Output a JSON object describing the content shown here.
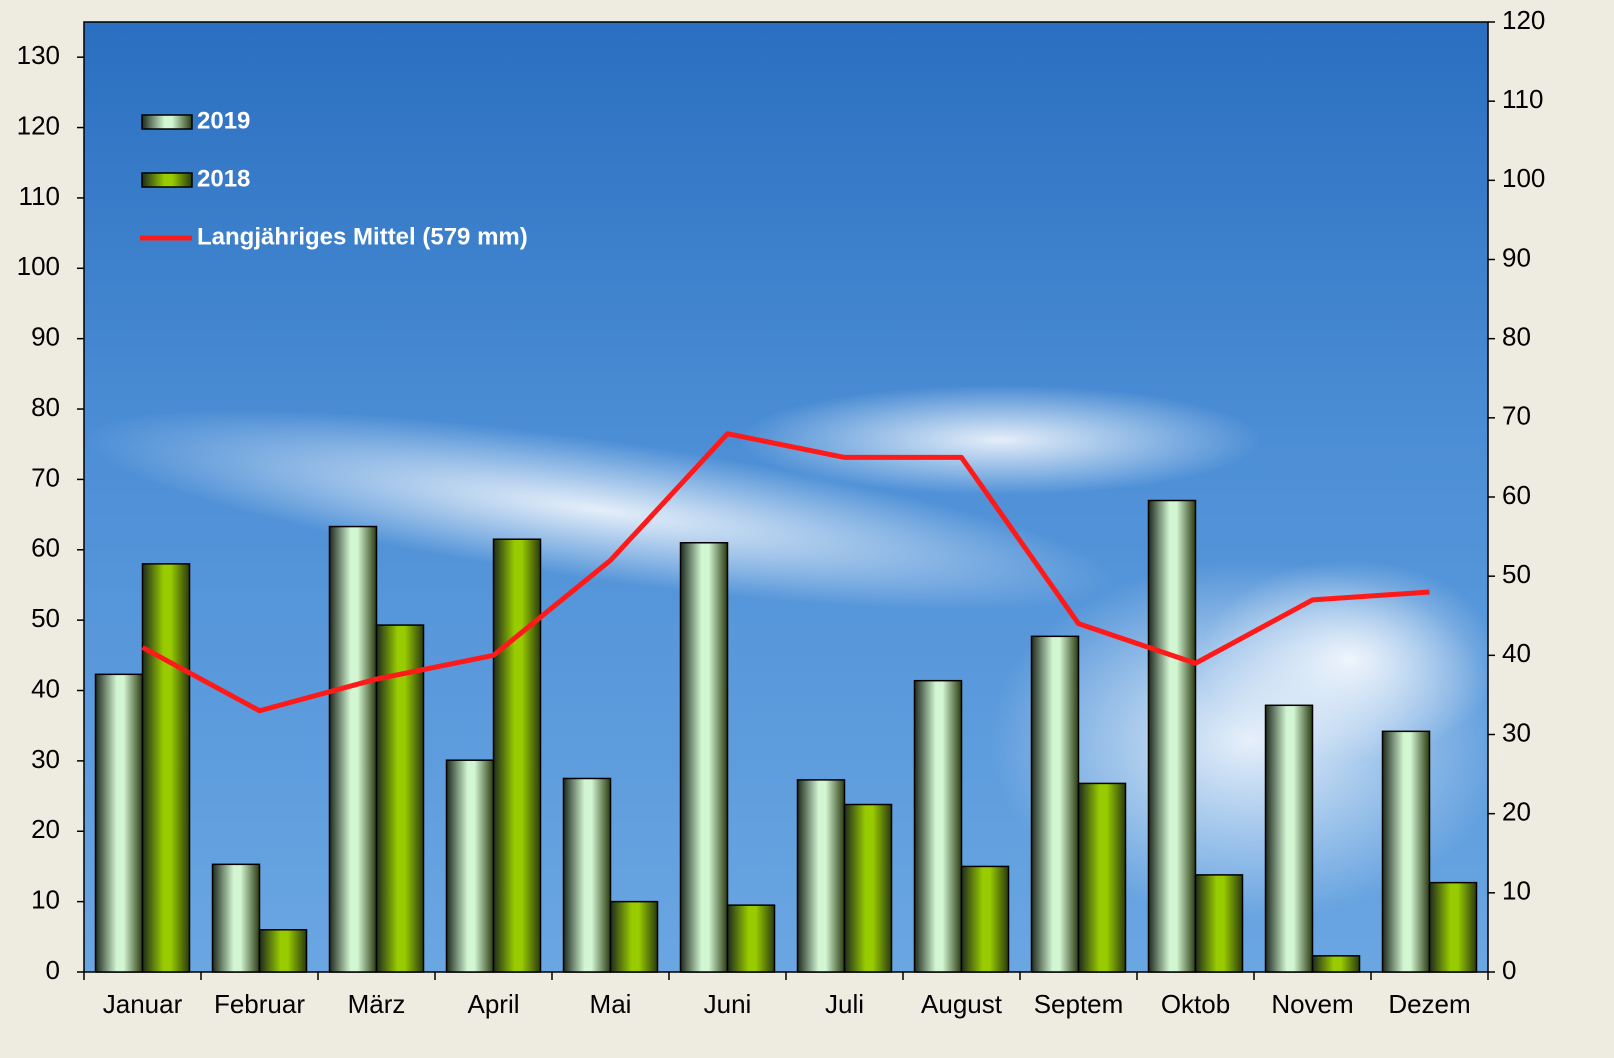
{
  "chart_data": {
    "type": "bar",
    "categories": [
      "Januar",
      "Februar",
      "März",
      "April",
      "Mai",
      "Juni",
      "Juli",
      "August",
      "Septem",
      "Oktob",
      "Novem",
      "Dezem"
    ],
    "series": [
      {
        "name": "2019",
        "color": "#d2f5d2",
        "values": [
          42.3,
          15.3,
          63.3,
          30.1,
          27.5,
          61,
          27.3,
          41.4,
          47.7,
          67,
          37.9,
          34.2
        ]
      },
      {
        "name": "2018",
        "color": "#99cc00",
        "values": [
          58,
          6,
          49.3,
          61.5,
          10,
          9.5,
          23.8,
          15,
          26.8,
          13.8,
          2.3,
          12.7
        ]
      },
      {
        "name": "Langjähriges Mittel (579 mm)",
        "color": "#ff1a1a",
        "type": "line",
        "axis": "y2",
        "values": [
          41,
          33,
          37,
          40,
          52,
          68,
          65,
          65,
          44,
          39,
          47,
          48
        ]
      }
    ],
    "ylim": [
      0,
      135
    ],
    "yticks": [
      0,
      10,
      20,
      30,
      40,
      50,
      60,
      70,
      80,
      90,
      100,
      110,
      120,
      130
    ],
    "y2lim": [
      0,
      120
    ],
    "y2ticks": [
      0,
      10,
      20,
      30,
      40,
      50,
      60,
      70,
      80,
      90,
      100,
      110,
      120
    ],
    "legend": "top-left"
  }
}
